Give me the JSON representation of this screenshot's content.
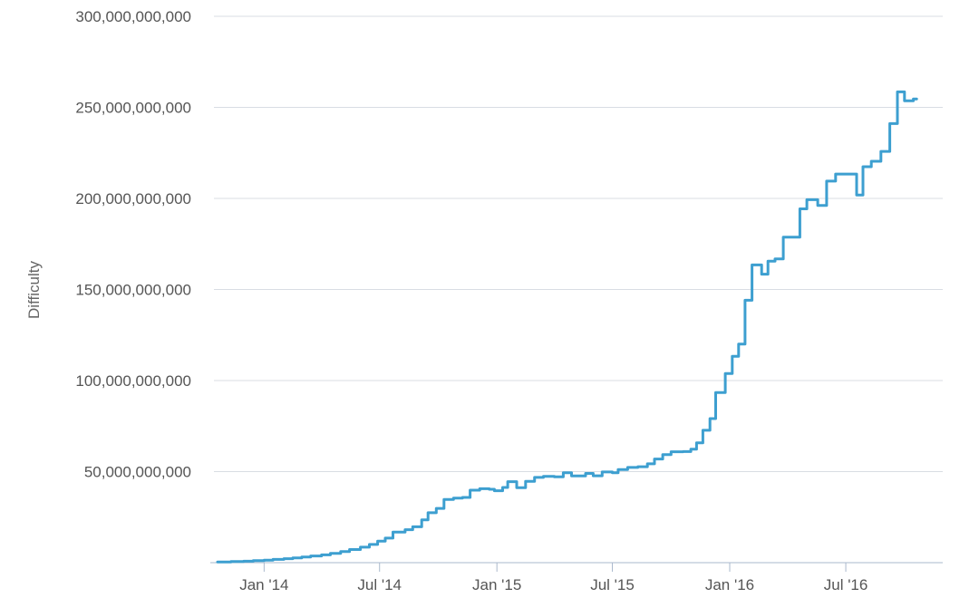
{
  "chart_data": {
    "type": "line",
    "title": "",
    "xlabel": "",
    "ylabel": "Difficulty",
    "ylim": [
      0,
      300000000000
    ],
    "xlim": [
      "2013-10-20",
      "2016-11-30"
    ],
    "grid": true,
    "legend": "none",
    "y_ticks": [
      {
        "value": 50000000000,
        "label": "50,000,000,000"
      },
      {
        "value": 100000000000,
        "label": "100,000,000,000"
      },
      {
        "value": 150000000000,
        "label": "150,000,000,000"
      },
      {
        "value": 200000000000,
        "label": "200,000,000,000"
      },
      {
        "value": 250000000000,
        "label": "250,000,000,000"
      },
      {
        "value": 300000000000,
        "label": "300,000,000,000"
      }
    ],
    "x_ticks": [
      {
        "value": "2014-01-01",
        "label": "Jan '14"
      },
      {
        "value": "2014-07-01",
        "label": "Jul '14"
      },
      {
        "value": "2015-01-01",
        "label": "Jan '15"
      },
      {
        "value": "2015-07-01",
        "label": "Jul '15"
      },
      {
        "value": "2016-01-01",
        "label": "Jan '16"
      },
      {
        "value": "2016-07-01",
        "label": "Jul '16"
      }
    ],
    "series": [
      {
        "color": "#3d9fd0",
        "step": true,
        "points": [
          [
            "2013-10-20",
            400000000
          ],
          [
            "2013-11-10",
            600000000
          ],
          [
            "2013-11-30",
            800000000
          ],
          [
            "2013-12-15",
            1100000000
          ],
          [
            "2014-01-01",
            1400000000
          ],
          [
            "2014-01-15",
            1800000000
          ],
          [
            "2014-02-01",
            2200000000
          ],
          [
            "2014-02-15",
            2600000000
          ],
          [
            "2014-03-01",
            3100000000
          ],
          [
            "2014-03-15",
            3700000000
          ],
          [
            "2014-04-01",
            4300000000
          ],
          [
            "2014-04-15",
            5100000000
          ],
          [
            "2014-05-01",
            6100000000
          ],
          [
            "2014-05-15",
            7200000000
          ],
          [
            "2014-06-01",
            8500000000
          ],
          [
            "2014-06-15",
            10000000000
          ],
          [
            "2014-06-28",
            11800000000
          ],
          [
            "2014-07-10",
            13500000000
          ],
          [
            "2014-07-22",
            16800000000
          ],
          [
            "2014-08-10",
            18100000000
          ],
          [
            "2014-08-22",
            19700000000
          ],
          [
            "2014-09-05",
            23500000000
          ],
          [
            "2014-09-15",
            27400000000
          ],
          [
            "2014-09-28",
            29800000000
          ],
          [
            "2014-10-10",
            34700000000
          ],
          [
            "2014-10-25",
            35400000000
          ],
          [
            "2014-11-08",
            35800000000
          ],
          [
            "2014-11-20",
            39800000000
          ],
          [
            "2014-12-05",
            40600000000
          ],
          [
            "2014-12-20",
            40300000000
          ],
          [
            "2014-12-28",
            39500000000
          ],
          [
            "2015-01-10",
            41300000000
          ],
          [
            "2015-01-18",
            44500000000
          ],
          [
            "2015-02-01",
            41200000000
          ],
          [
            "2015-02-15",
            44700000000
          ],
          [
            "2015-03-01",
            46800000000
          ],
          [
            "2015-03-15",
            47400000000
          ],
          [
            "2015-04-01",
            47100000000
          ],
          [
            "2015-04-15",
            49400000000
          ],
          [
            "2015-04-28",
            47600000000
          ],
          [
            "2015-05-20",
            49000000000
          ],
          [
            "2015-06-01",
            47700000000
          ],
          [
            "2015-06-15",
            49800000000
          ],
          [
            "2015-07-01",
            49400000000
          ],
          [
            "2015-07-10",
            51100000000
          ],
          [
            "2015-07-25",
            52300000000
          ],
          [
            "2015-08-10",
            52700000000
          ],
          [
            "2015-08-25",
            54300000000
          ],
          [
            "2015-09-05",
            56900000000
          ],
          [
            "2015-09-18",
            59300000000
          ],
          [
            "2015-10-01",
            60900000000
          ],
          [
            "2015-10-20",
            61000000000
          ],
          [
            "2015-11-01",
            62300000000
          ],
          [
            "2015-11-10",
            65800000000
          ],
          [
            "2015-11-20",
            72700000000
          ],
          [
            "2015-12-01",
            79100000000
          ],
          [
            "2015-12-10",
            93400000000
          ],
          [
            "2015-12-25",
            103900000000
          ],
          [
            "2016-01-05",
            113300000000
          ],
          [
            "2016-01-15",
            120000000000
          ],
          [
            "2016-01-25",
            144100000000
          ],
          [
            "2016-02-05",
            163500000000
          ],
          [
            "2016-02-20",
            158400000000
          ],
          [
            "2016-03-01",
            165500000000
          ],
          [
            "2016-03-12",
            166800000000
          ],
          [
            "2016-03-25",
            178700000000
          ],
          [
            "2016-04-20",
            194300000000
          ],
          [
            "2016-05-01",
            199300000000
          ],
          [
            "2016-05-18",
            196100000000
          ],
          [
            "2016-06-01",
            209500000000
          ],
          [
            "2016-06-15",
            213400000000
          ],
          [
            "2016-07-18",
            201900000000
          ],
          [
            "2016-07-28",
            217400000000
          ],
          [
            "2016-08-10",
            220400000000
          ],
          [
            "2016-08-25",
            225800000000
          ],
          [
            "2016-09-08",
            241100000000
          ],
          [
            "2016-09-20",
            258500000000
          ],
          [
            "2016-10-01",
            253600000000
          ],
          [
            "2016-10-15",
            254600000000
          ]
        ]
      }
    ]
  }
}
